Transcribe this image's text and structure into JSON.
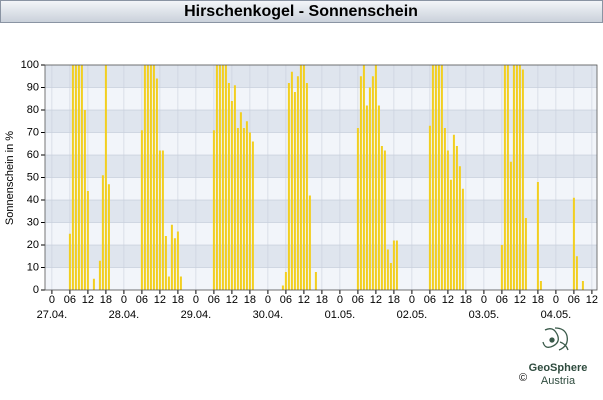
{
  "chart_data": {
    "type": "bar",
    "title": "Hirschenkogel - Sonnenschein",
    "y_label": "Sonnenschein in %",
    "color": "#f2cf1f",
    "grid": true,
    "x": [
      6,
      7,
      8,
      9,
      10,
      11,
      12,
      14,
      16,
      17,
      18,
      19,
      30,
      31,
      32,
      33,
      34,
      35,
      36,
      37,
      38,
      39,
      40,
      41,
      42,
      43,
      54,
      55,
      56,
      57,
      58,
      59,
      60,
      61,
      62,
      63,
      64,
      65,
      66,
      67,
      77,
      78,
      79,
      80,
      81,
      82,
      83,
      84,
      85,
      86,
      88,
      102,
      103,
      104,
      105,
      106,
      107,
      108,
      109,
      110,
      111,
      112,
      113,
      114,
      115,
      126,
      127,
      128,
      129,
      130,
      131,
      132,
      133,
      134,
      135,
      136,
      137,
      150,
      151,
      152,
      153,
      154,
      155,
      156,
      157,
      158,
      162,
      163,
      174,
      175,
      177
    ],
    "values": [
      25,
      100,
      100,
      100,
      100,
      80,
      44,
      5,
      13,
      51,
      100,
      47,
      71,
      100,
      100,
      100,
      100,
      94,
      62,
      62,
      24,
      6,
      29,
      23,
      26,
      6,
      71,
      100,
      100,
      100,
      100,
      92,
      84,
      91,
      72,
      79,
      72,
      75,
      70,
      66,
      2,
      8,
      92,
      97,
      88,
      95,
      100,
      100,
      92,
      42,
      8,
      72,
      95,
      100,
      82,
      90,
      95,
      100,
      82,
      64,
      62,
      18,
      12,
      22,
      22,
      73,
      100,
      100,
      100,
      100,
      72,
      62,
      49,
      69,
      64,
      55,
      45,
      20,
      100,
      100,
      57,
      100,
      100,
      100,
      98,
      32,
      48,
      4,
      41,
      15,
      4
    ],
    "xlim": [
      -2.3,
      181.7
    ],
    "ylim": [
      0,
      100
    ],
    "yticks": [
      0,
      10,
      20,
      30,
      40,
      50,
      60,
      70,
      80,
      90,
      100
    ],
    "xticks": [
      0,
      {
        "value": 6,
        "label": "06"
      },
      {
        "value": 12,
        "label": "12"
      },
      {
        "value": 18,
        "label": "18"
      },
      {
        "value": 24,
        "label": "0"
      },
      {
        "value": 30,
        "label": "06"
      },
      {
        "value": 36,
        "label": "12"
      },
      {
        "value": 42,
        "label": "18"
      },
      {
        "value": 48,
        "label": "0"
      },
      {
        "value": 54,
        "label": "06"
      },
      {
        "value": 60,
        "label": "12"
      },
      {
        "value": 66,
        "label": "18"
      },
      {
        "value": 72,
        "label": "0"
      },
      {
        "value": 78,
        "label": "06"
      },
      {
        "value": 84,
        "label": "12"
      },
      {
        "value": 90,
        "label": "18"
      },
      {
        "value": 96,
        "label": "0"
      },
      {
        "value": 102,
        "label": "06"
      },
      {
        "value": 108,
        "label": "12"
      },
      {
        "value": 114,
        "label": "18"
      },
      {
        "value": 120,
        "label": "0"
      },
      {
        "value": 126,
        "label": "06"
      },
      {
        "value": 132,
        "label": "12"
      },
      {
        "value": 138,
        "label": "18"
      },
      {
        "value": 144,
        "label": "0"
      },
      {
        "value": 150,
        "label": "06"
      },
      {
        "value": 156,
        "label": "12"
      },
      {
        "value": 162,
        "label": "18"
      },
      {
        "value": 168,
        "label": "0"
      },
      {
        "value": 174,
        "label": "06"
      },
      {
        "value": 180,
        "label": "12"
      }
    ],
    "date_labels": [
      {
        "value": 0,
        "label": "27.04."
      },
      {
        "value": 24,
        "label": "28.04."
      },
      {
        "value": 48,
        "label": "29.04."
      },
      {
        "value": 72,
        "label": "30.04."
      },
      {
        "value": 96,
        "label": "01.05."
      },
      {
        "value": 120,
        "label": "02.05."
      },
      {
        "value": 144,
        "label": "03.05."
      },
      {
        "value": 168,
        "label": "04.05."
      }
    ]
  },
  "logo": {
    "name": "GeoSphere",
    "country": "Austria",
    "copyright": "©"
  }
}
